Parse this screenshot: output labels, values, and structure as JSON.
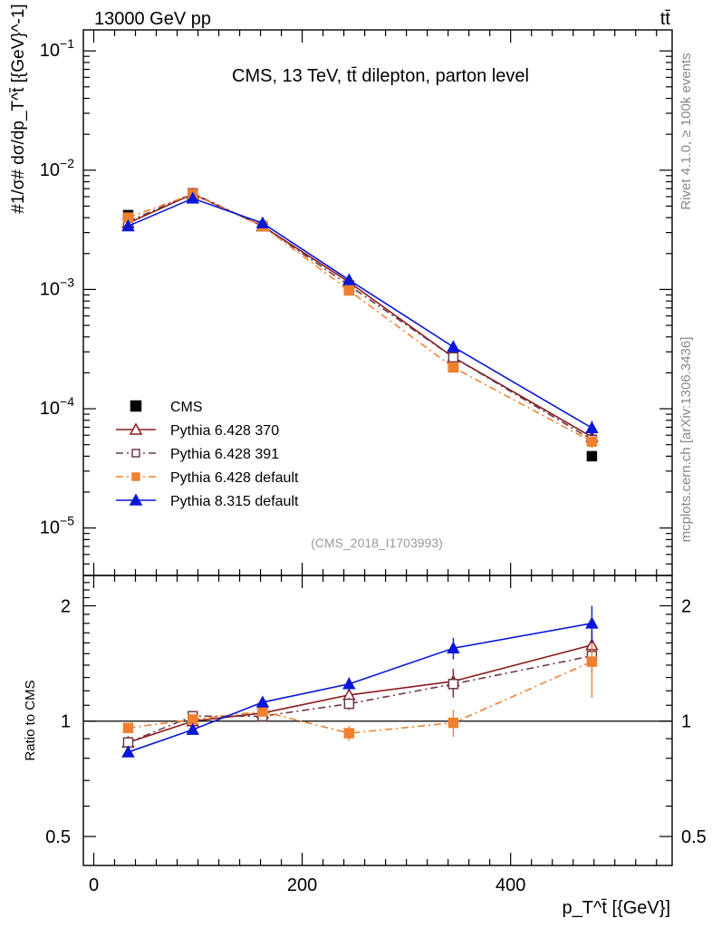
{
  "header": {
    "left": "13000 GeV pp",
    "right": "tt̄"
  },
  "side_labels": {
    "top": "Rivet 4.1.0, ≥ 100k events",
    "bottom": "mcplots.cern.ch [arXiv:1306.3436]"
  },
  "chart_data": [
    {
      "type": "line",
      "title": "CMS, 13 TeV, tt̄ dilepton, parton level",
      "watermark": "(CMS_2018_I1703993)",
      "xlabel": "p_T^t̄ [{GeV}]",
      "ylabel": "#1/σ# dσ/dp_T^t̄ [{GeV}^-1]",
      "yscale": "log",
      "xlim": [
        -10,
        555
      ],
      "ylim": [
        4e-06,
        0.15
      ],
      "y_ticks": [
        1e-05,
        0.0001,
        0.001,
        0.01,
        0.1
      ],
      "y_tick_labels": {
        "base": "10",
        "exps": [
          "−5",
          "−4",
          "−3",
          "−2",
          "−1"
        ]
      },
      "x": [
        33,
        95,
        162,
        245,
        345,
        478
      ],
      "series": [
        {
          "name": "CMS",
          "color": "#000000",
          "marker": "square",
          "line": "none",
          "values": [
            0.0042,
            0.0062,
            0.0034,
            0.00103,
            0.000225,
            4e-05
          ],
          "errors": [
            0.0001,
            0.0001,
            6e-05,
            3e-05,
            1e-05,
            2e-06
          ]
        },
        {
          "name": "Pythia 6.428 370",
          "color": "#8b1a1a",
          "marker": "triangle-open",
          "line": "solid",
          "values": [
            0.0036,
            0.0063,
            0.0034,
            0.00115,
            0.00027,
            5.8e-05
          ],
          "errors": [
            5e-05,
            5e-05,
            3e-05,
            2e-05,
            1e-05,
            6e-06
          ]
        },
        {
          "name": "Pythia 6.428 391",
          "color": "#6b3a4a",
          "marker": "square-open",
          "line": "dashdot",
          "values": [
            0.0037,
            0.0064,
            0.0034,
            0.00108,
            0.00027,
            5.5e-05
          ],
          "errors": [
            5e-05,
            5e-05,
            3e-05,
            2e-05,
            1e-05,
            6e-06
          ]
        },
        {
          "name": "Pythia 6.428 default",
          "color": "#f08030",
          "marker": "square",
          "line": "dashdot",
          "values": [
            0.004,
            0.0063,
            0.0034,
            0.00098,
            0.000222,
            5.3e-05
          ],
          "errors": [
            5e-05,
            5e-05,
            3e-05,
            2e-05,
            1e-05,
            6e-06
          ]
        },
        {
          "name": "Pythia 8.315 default",
          "color": "#0a17d8",
          "marker": "triangle",
          "line": "solid",
          "values": [
            0.0034,
            0.0058,
            0.0036,
            0.0012,
            0.00033,
            6.9e-05
          ],
          "errors": [
            5e-05,
            5e-05,
            3e-05,
            3e-05,
            2e-05,
            1e-05
          ]
        }
      ]
    },
    {
      "type": "line",
      "ylabel": "Ratio to CMS",
      "xlabel": "p_T^t̄ [{GeV}]",
      "yscale": "log",
      "ylim": [
        0.42,
        2.4
      ],
      "y_ticks": [
        0.5,
        1,
        2
      ],
      "y_tick_labels": [
        "0.5",
        "1",
        "2"
      ],
      "x_ticks": [
        0,
        200,
        400
      ],
      "x_tick_labels": [
        "0",
        "200",
        "400"
      ],
      "x": [
        33,
        95,
        162,
        245,
        345,
        478
      ],
      "reference_value": 1,
      "series": [
        {
          "name": "Pythia 6.428 370",
          "color": "#8b1a1a",
          "marker": "triangle-open",
          "line": "solid",
          "values": [
            0.88,
            1.0,
            1.05,
            1.17,
            1.27,
            1.58
          ],
          "errors": [
            0.02,
            0.02,
            0.02,
            0.04,
            0.1,
            0.14
          ]
        },
        {
          "name": "Pythia 6.428 391",
          "color": "#6b3a4a",
          "marker": "square-open",
          "line": "dashdot",
          "values": [
            0.88,
            1.03,
            1.03,
            1.11,
            1.25,
            1.48
          ],
          "errors": [
            0.02,
            0.02,
            0.02,
            0.04,
            0.1,
            0.14
          ]
        },
        {
          "name": "Pythia 6.428 default",
          "color": "#f08030",
          "marker": "square",
          "line": "dashdot",
          "values": [
            0.96,
            1.01,
            1.06,
            0.93,
            0.99,
            1.43
          ],
          "errors": [
            0.02,
            0.02,
            0.02,
            0.04,
            0.08,
            0.28
          ]
        },
        {
          "name": "Pythia 8.315 default",
          "color": "#0a17d8",
          "marker": "triangle",
          "line": "solid",
          "values": [
            0.83,
            0.95,
            1.12,
            1.25,
            1.55,
            1.8
          ],
          "errors": [
            0.02,
            0.02,
            0.02,
            0.05,
            0.1,
            0.2
          ]
        }
      ]
    }
  ]
}
